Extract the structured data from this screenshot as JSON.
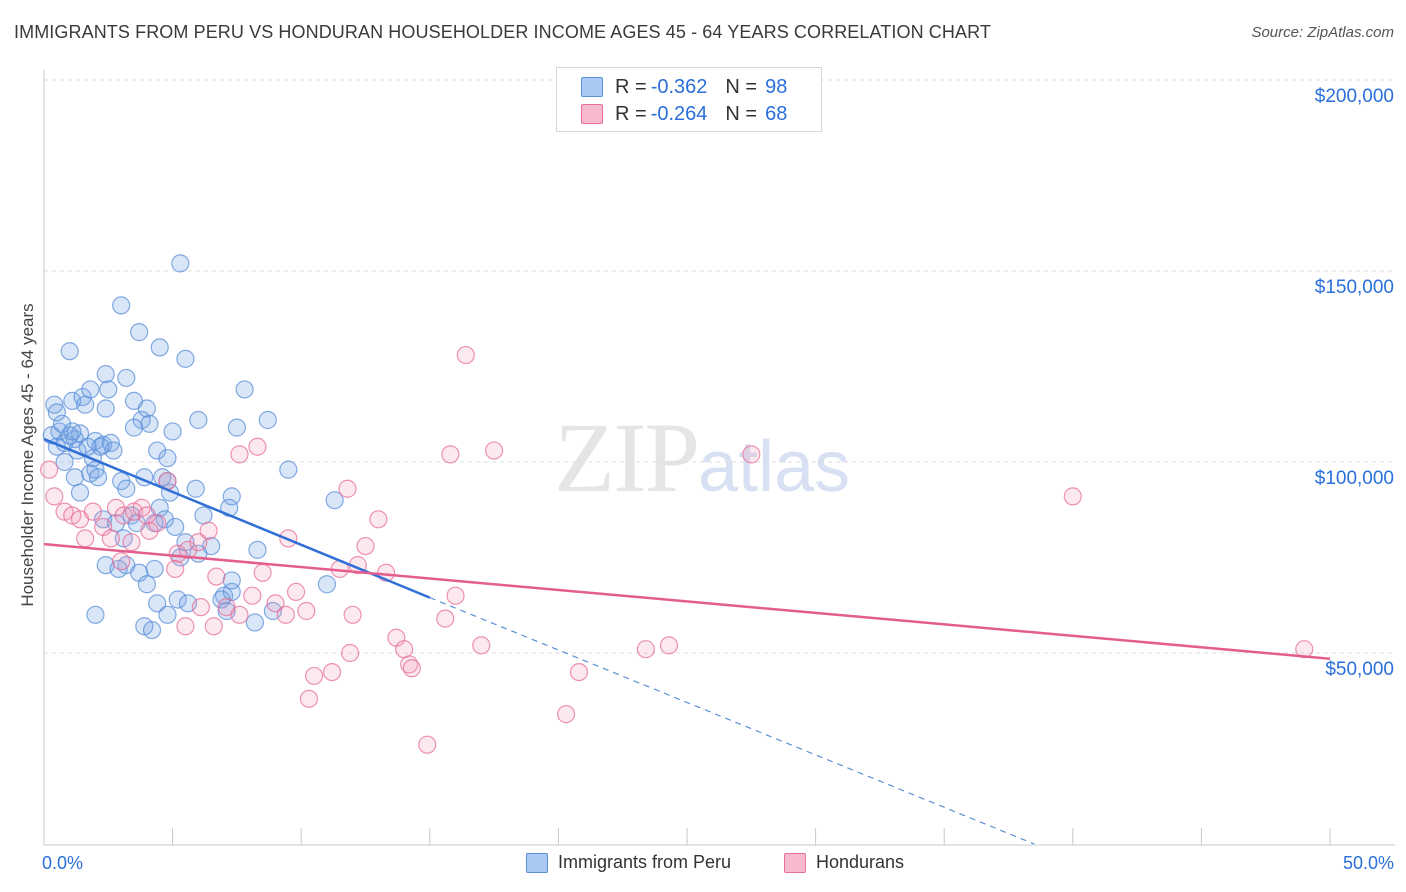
{
  "title": "IMMIGRANTS FROM PERU VS HONDURAN HOUSEHOLDER INCOME AGES 45 - 64 YEARS CORRELATION CHART",
  "source": "Source: ZipAtlas.com",
  "watermark": {
    "zip": "ZIP",
    "atlas": "atlas"
  },
  "legend": {
    "rows": [
      {
        "r_label": "R =",
        "r_value": "-0.362",
        "n_label": "N =",
        "n_value": "98",
        "color": "#a9c8f2"
      },
      {
        "r_label": "R =",
        "r_value": "-0.264",
        "n_label": "N =",
        "n_value": "68",
        "color": "#f7b9cc"
      }
    ]
  },
  "bottom_legend": [
    {
      "label": "Immigrants from Peru",
      "color": "#a9c8f2"
    },
    {
      "label": "Hondurans",
      "color": "#f7b9cc"
    }
  ],
  "x_axis": {
    "min_label": "0.0%",
    "max_label": "50.0%"
  },
  "y_axis": {
    "label": "Householder Income Ages 45 - 64 years",
    "ticks": [
      "$200,000",
      "$150,000",
      "$100,000",
      "$50,000"
    ]
  },
  "colors": {
    "blue": "#5b8fd8",
    "blue_fill": "rgba(120,165,230,0.28)",
    "pink": "#e76f98",
    "pink_fill": "rgba(240,150,180,0.25)",
    "accent": "#2a6fdb"
  },
  "chart_data": {
    "type": "scatter",
    "xlabel": "",
    "ylabel": "Householder Income Ages 45 - 64 years",
    "xlim": [
      0,
      50
    ],
    "ylim": [
      0,
      210000
    ],
    "y_ticks": [
      50000,
      100000,
      150000,
      200000
    ],
    "grid": "horizontal dashed",
    "series": [
      {
        "name": "Immigrants from Peru",
        "color": "#5b8fd8",
        "r": -0.362,
        "n": 98,
        "trend": {
          "x0": 0,
          "y0": 106000,
          "x1": 15,
          "y1": 64500,
          "dashed_to_x": 38.5,
          "dashed_to_y": 0
        },
        "points": [
          [
            0.3,
            107000
          ],
          [
            0.5,
            104000
          ],
          [
            0.6,
            108000
          ],
          [
            0.8,
            105000
          ],
          [
            1.0,
            107000
          ],
          [
            1.2,
            106000
          ],
          [
            1.4,
            107500
          ],
          [
            1.7,
            104000
          ],
          [
            2.0,
            105500
          ],
          [
            2.3,
            104500
          ],
          [
            2.6,
            105000
          ],
          [
            0.4,
            115000
          ],
          [
            0.7,
            110000
          ],
          [
            1.1,
            116000
          ],
          [
            1.5,
            117000
          ],
          [
            1.6,
            115000
          ],
          [
            1.8,
            119000
          ],
          [
            2.4,
            114000
          ],
          [
            2.5,
            119000
          ],
          [
            3.5,
            116000
          ],
          [
            3.8,
            111000
          ],
          [
            3.2,
            122000
          ],
          [
            2.4,
            123000
          ],
          [
            1.0,
            129000
          ],
          [
            3.0,
            141000
          ],
          [
            3.7,
            134000
          ],
          [
            4.5,
            130000
          ],
          [
            5.5,
            127000
          ],
          [
            5.3,
            152000
          ],
          [
            7.8,
            119000
          ],
          [
            4.0,
            114000
          ],
          [
            4.1,
            110000
          ],
          [
            5.0,
            108000
          ],
          [
            6.0,
            111000
          ],
          [
            7.5,
            109000
          ],
          [
            8.7,
            111000
          ],
          [
            0.8,
            100000
          ],
          [
            1.2,
            96000
          ],
          [
            1.4,
            92000
          ],
          [
            1.8,
            97000
          ],
          [
            2.0,
            98000
          ],
          [
            2.1,
            96000
          ],
          [
            2.7,
            103000
          ],
          [
            3.0,
            95000
          ],
          [
            3.2,
            93000
          ],
          [
            3.9,
            96000
          ],
          [
            4.4,
            103000
          ],
          [
            4.8,
            101000
          ],
          [
            4.8,
            95000
          ],
          [
            4.9,
            92000
          ],
          [
            5.9,
            93000
          ],
          [
            7.3,
            91000
          ],
          [
            9.5,
            98000
          ],
          [
            11.3,
            90000
          ],
          [
            2.3,
            85000
          ],
          [
            2.8,
            84000
          ],
          [
            3.1,
            80000
          ],
          [
            3.4,
            86000
          ],
          [
            3.6,
            84000
          ],
          [
            4.3,
            84000
          ],
          [
            4.5,
            88000
          ],
          [
            4.7,
            85000
          ],
          [
            5.1,
            83000
          ],
          [
            5.5,
            79000
          ],
          [
            6.2,
            86000
          ],
          [
            6.5,
            78000
          ],
          [
            7.2,
            88000
          ],
          [
            6.0,
            76000
          ],
          [
            3.2,
            73000
          ],
          [
            3.7,
            71000
          ],
          [
            4.3,
            72000
          ],
          [
            5.3,
            75000
          ],
          [
            2.4,
            73000
          ],
          [
            2.9,
            72000
          ],
          [
            4.0,
            68000
          ],
          [
            4.4,
            63000
          ],
          [
            5.2,
            64000
          ],
          [
            5.6,
            63000
          ],
          [
            4.8,
            60000
          ],
          [
            7.0,
            65000
          ],
          [
            7.3,
            66000
          ],
          [
            6.9,
            64000
          ],
          [
            7.3,
            69000
          ],
          [
            7.1,
            61000
          ],
          [
            8.2,
            58000
          ],
          [
            8.9,
            61000
          ],
          [
            8.3,
            77000
          ],
          [
            11.0,
            68000
          ],
          [
            2.0,
            60000
          ],
          [
            3.9,
            57000
          ],
          [
            4.2,
            56000
          ],
          [
            1.3,
            103000
          ],
          [
            0.5,
            113000
          ],
          [
            1.1,
            108000
          ],
          [
            1.9,
            101000
          ],
          [
            2.2,
            104000
          ],
          [
            3.5,
            109000
          ],
          [
            4.6,
            96000
          ]
        ]
      },
      {
        "name": "Hondurans",
        "color": "#e76f98",
        "r": -0.264,
        "n": 68,
        "trend": {
          "x0": 0,
          "y0": 78500,
          "x1": 50,
          "y1": 48500
        },
        "points": [
          [
            0.2,
            98000
          ],
          [
            0.4,
            91000
          ],
          [
            0.8,
            87000
          ],
          [
            1.1,
            86000
          ],
          [
            1.4,
            85000
          ],
          [
            1.6,
            80000
          ],
          [
            1.9,
            87000
          ],
          [
            2.3,
            83000
          ],
          [
            2.6,
            80000
          ],
          [
            2.8,
            88000
          ],
          [
            3.1,
            86000
          ],
          [
            3.5,
            87000
          ],
          [
            3.8,
            88000
          ],
          [
            4.1,
            82000
          ],
          [
            4.4,
            84000
          ],
          [
            4.8,
            95000
          ],
          [
            5.2,
            76000
          ],
          [
            5.6,
            77000
          ],
          [
            6.0,
            79000
          ],
          [
            6.4,
            82000
          ],
          [
            6.7,
            70000
          ],
          [
            7.1,
            62000
          ],
          [
            7.6,
            60000
          ],
          [
            8.1,
            65000
          ],
          [
            8.5,
            71000
          ],
          [
            9.0,
            63000
          ],
          [
            9.4,
            60000
          ],
          [
            9.8,
            66000
          ],
          [
            10.2,
            61000
          ],
          [
            3.0,
            74000
          ],
          [
            3.4,
            79000
          ],
          [
            4.0,
            86000
          ],
          [
            5.1,
            72000
          ],
          [
            5.5,
            57000
          ],
          [
            6.1,
            62000
          ],
          [
            6.6,
            57000
          ],
          [
            7.6,
            102000
          ],
          [
            8.3,
            104000
          ],
          [
            9.5,
            80000
          ],
          [
            11.5,
            72000
          ],
          [
            12.0,
            60000
          ],
          [
            12.2,
            73000
          ],
          [
            12.5,
            78000
          ],
          [
            13.0,
            85000
          ],
          [
            13.3,
            71000
          ],
          [
            11.8,
            93000
          ],
          [
            11.9,
            50000
          ],
          [
            11.2,
            45000
          ],
          [
            10.5,
            44000
          ],
          [
            10.3,
            38000
          ],
          [
            13.7,
            54000
          ],
          [
            14.0,
            51000
          ],
          [
            14.2,
            47000
          ],
          [
            14.3,
            46000
          ],
          [
            14.9,
            26000
          ],
          [
            15.6,
            59000
          ],
          [
            16.0,
            65000
          ],
          [
            16.4,
            128000
          ],
          [
            15.8,
            102000
          ],
          [
            17.0,
            52000
          ],
          [
            17.5,
            103000
          ],
          [
            20.3,
            34000
          ],
          [
            20.8,
            45000
          ],
          [
            23.4,
            51000
          ],
          [
            24.3,
            52000
          ],
          [
            27.5,
            102000
          ],
          [
            40.0,
            91000
          ],
          [
            49.0,
            51000
          ]
        ]
      }
    ]
  }
}
